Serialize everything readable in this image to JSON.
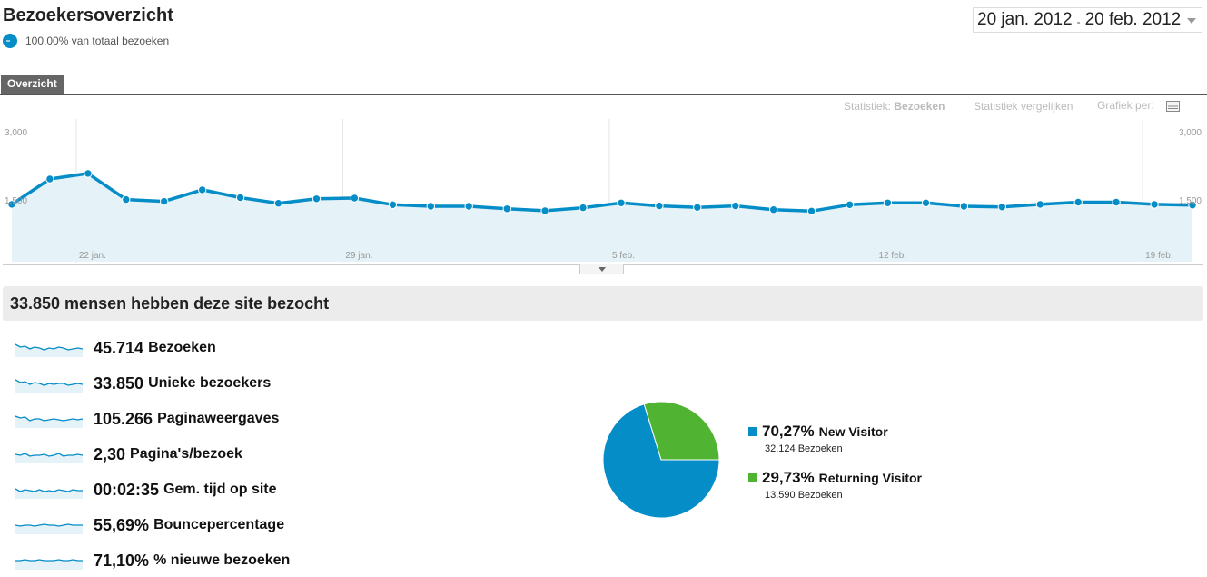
{
  "header": {
    "title": "Bezoekersoverzicht",
    "segment_label": "100,00% van totaal bezoeken",
    "date_start": "20 jan. 2012",
    "date_sep": "-",
    "date_end": "20 feb. 2012"
  },
  "tabs": [
    {
      "label": "Overzicht"
    }
  ],
  "chart_controls": {
    "statistic_label": "Statistiek:",
    "statistic_value": "Bezoeken",
    "compare_label": "Statistiek vergelijken",
    "graph_per_label": "Grafiek per:"
  },
  "colors": {
    "accent": "#058dc7",
    "fill": "#e5f2f8",
    "new_visitor": "#058dc7",
    "returning_visitor": "#50b432"
  },
  "chart_data": {
    "type": "area",
    "ylim": [
      0,
      3000
    ],
    "y_tick_labels": [
      "3,000",
      "1,500"
    ],
    "x_tick_labels": [
      "22 jan.",
      "29 jan.",
      "5 feb.",
      "12 feb.",
      "19 feb."
    ],
    "x_tick_indices": [
      2,
      9,
      16,
      23,
      30
    ],
    "series": [
      {
        "values": [
          1490,
          2170,
          2320,
          1620,
          1570,
          1880,
          1670,
          1520,
          1640,
          1660,
          1480,
          1440,
          1440,
          1370,
          1320,
          1400,
          1530,
          1450,
          1410,
          1450,
          1350,
          1310,
          1480,
          1530,
          1530,
          1440,
          1420,
          1490,
          1550,
          1550,
          1490,
          1470
        ]
      }
    ]
  },
  "summary": {
    "headline": "33.850 mensen hebben deze site bezocht"
  },
  "metrics": [
    {
      "value": "45.714",
      "label": "Bezoeken"
    },
    {
      "value": "33.850",
      "label": "Unieke bezoekers"
    },
    {
      "value": "105.266",
      "label": "Paginaweergaves"
    },
    {
      "value": "2,30",
      "label": "Pagina's/bezoek"
    },
    {
      "value": "00:02:35",
      "label": "Gem. tijd op site"
    },
    {
      "value": "55,69%",
      "label": "Bouncepercentage"
    },
    {
      "value": "71,10%",
      "label": "% nieuwe bezoeken"
    }
  ],
  "pie": {
    "slices": [
      {
        "percent_text": "70,27%",
        "name": "New Visitor",
        "share": 0.7027,
        "visits_text": "32.124 Bezoeken"
      },
      {
        "percent_text": "29,73%",
        "name": "Returning Visitor",
        "share": 0.2973,
        "visits_text": "13.590 Bezoeken"
      }
    ]
  }
}
